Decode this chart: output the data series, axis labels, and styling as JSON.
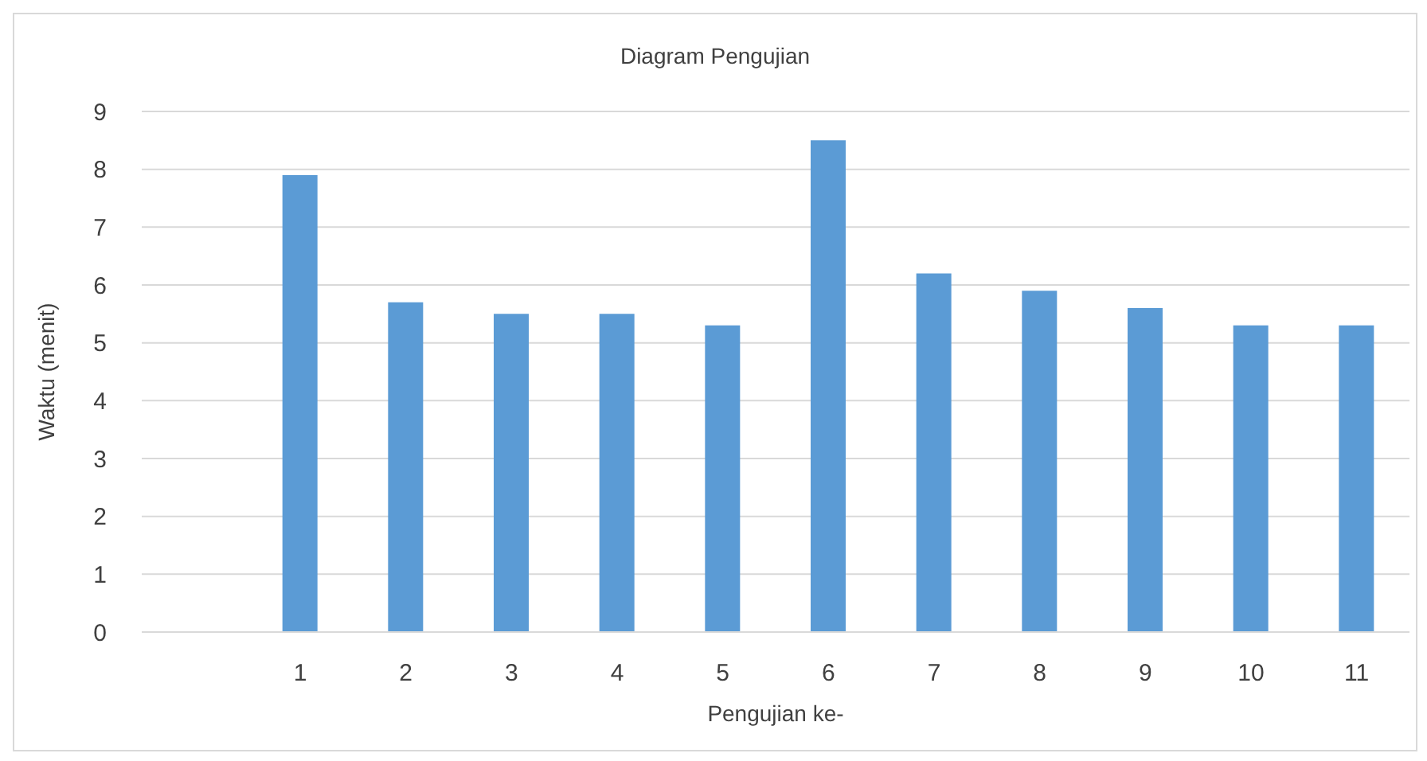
{
  "chart_data": {
    "type": "bar",
    "title": "Diagram Pengujian",
    "xlabel": "Pengujian ke-",
    "ylabel": "Waktu (menit)",
    "categories": [
      null,
      "1",
      "2",
      "3",
      "4",
      "5",
      "6",
      "7",
      "8",
      "9",
      "10",
      "11"
    ],
    "values": [
      null,
      7.9,
      5.7,
      5.5,
      5.5,
      5.3,
      8.5,
      6.2,
      5.9,
      5.6,
      5.3,
      5.3
    ],
    "color": "#5b9bd5",
    "ylim": [
      0,
      9
    ],
    "yticks": [
      0,
      1,
      2,
      3,
      4,
      5,
      6,
      7,
      8,
      9
    ],
    "grid": "y",
    "legend": false
  }
}
